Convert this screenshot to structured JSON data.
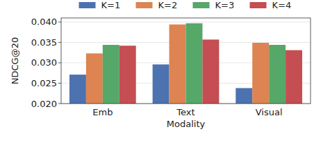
{
  "chart_data": {
    "type": "bar",
    "x_label": "Modality",
    "y_label": "NDCG@20",
    "categories": [
      "Emb",
      "Text",
      "Visual"
    ],
    "series": [
      {
        "name": "K=1",
        "color": "#4c72b0",
        "values": [
          0.0271,
          0.0296,
          0.0238
        ]
      },
      {
        "name": "K=2",
        "color": "#dd8452",
        "values": [
          0.0323,
          0.0394,
          0.0349
        ]
      },
      {
        "name": "K=3",
        "color": "#55a868",
        "values": [
          0.0344,
          0.0397,
          0.0344
        ]
      },
      {
        "name": "K=4",
        "color": "#c44e52",
        "values": [
          0.0342,
          0.0357,
          0.0331
        ]
      }
    ],
    "ylim": [
      0.02,
      0.041
    ],
    "yticks": [
      {
        "value": 0.02,
        "label": "0.020"
      },
      {
        "value": 0.025,
        "label": "0.025"
      },
      {
        "value": 0.03,
        "label": "0.030"
      },
      {
        "value": 0.035,
        "label": "0.035"
      },
      {
        "value": 0.04,
        "label": "0.040"
      }
    ],
    "grid": true,
    "legend": "top"
  }
}
